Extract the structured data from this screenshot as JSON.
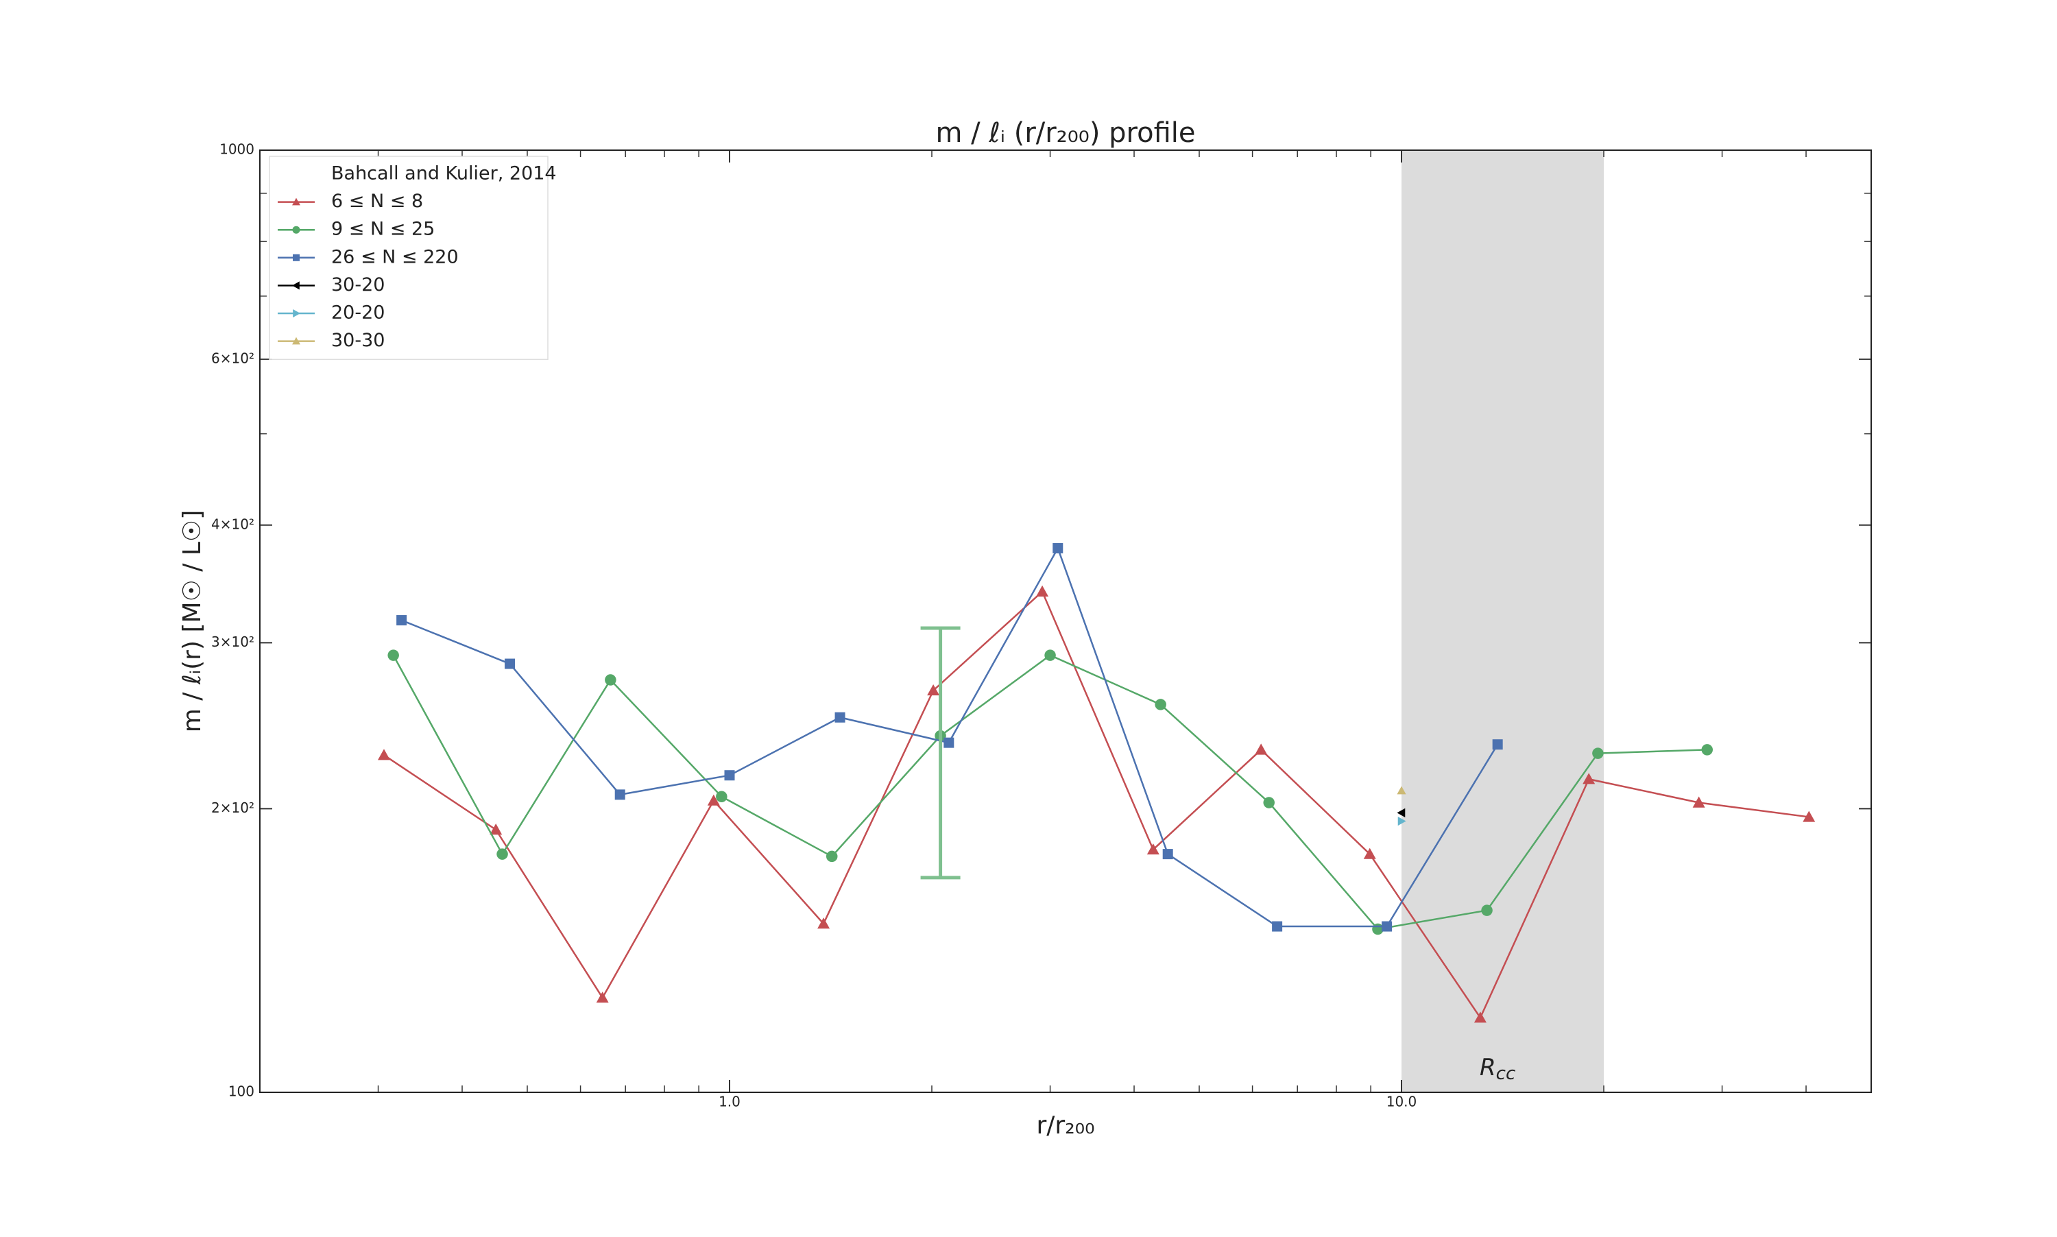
{
  "chart_data": {
    "type": "line",
    "title": "m /  ℓᵢ (r/r₂₀₀) profile",
    "x_label": "r/r₂₀₀",
    "y_label": "m / ℓᵢ(r)  [M☉ / L☉]",
    "x_scale": "log",
    "y_scale": "log",
    "xlim": [
      0.2,
      50
    ],
    "ylim": [
      100,
      1000
    ],
    "xticks": [
      {
        "value": 1,
        "label": "1.0"
      },
      {
        "value": 10,
        "label": "10.0"
      }
    ],
    "xminorticks": [
      0.3,
      0.4,
      0.5,
      0.6,
      0.7,
      0.8,
      0.9,
      2,
      3,
      4,
      5,
      6,
      7,
      8,
      9,
      20,
      30,
      40
    ],
    "yticks": [
      100,
      {
        "value": 200,
        "label": "2×10²"
      },
      {
        "value": 300,
        "label": "3×10²"
      },
      {
        "value": 400,
        "label": "4×10²"
      },
      {
        "value": 600,
        "label": "6×10²"
      },
      1000
    ],
    "yminorticks": [
      500,
      700,
      800,
      900
    ],
    "legend_title": "Bahcall and Kulier, 2014",
    "legend_position": "upper left",
    "span": {
      "xlim": [
        10,
        20
      ],
      "color": "#dcdcdc"
    },
    "annotation": {
      "text": "R",
      "subscript": "cc",
      "x": 13.9,
      "y": 106
    },
    "series": [
      {
        "name": "6 ≤ N ≤ 8",
        "color": "#c44e52",
        "marker": "triangle-up",
        "x": [
          0.306,
          0.449,
          0.647,
          0.947,
          1.38,
          2.01,
          2.92,
          4.27,
          6.18,
          8.97,
          13.1,
          19.0,
          27.7,
          40.4
        ],
        "values": [
          228,
          190,
          126,
          204,
          151,
          267,
          340,
          181,
          231,
          179,
          120,
          215,
          203,
          196
        ]
      },
      {
        "name": "9 ≤ N ≤ 25",
        "color": "#55a868",
        "marker": "circle",
        "x": [
          0.316,
          0.459,
          0.665,
          0.973,
          1.42,
          2.06,
          3.0,
          4.38,
          6.35,
          9.22,
          13.4,
          19.6,
          28.5
        ],
        "values": [
          291,
          179,
          274,
          206,
          178,
          239,
          291,
          258,
          203,
          149,
          156,
          229,
          231
        ]
      },
      {
        "name": "26 ≤ N ≤ 220",
        "color": "#4c72b0",
        "marker": "square",
        "x": [
          0.325,
          0.471,
          0.687,
          1.0,
          1.46,
          2.12,
          3.08,
          4.49,
          6.53,
          9.51,
          13.9
        ],
        "values": [
          317,
          285,
          207,
          217,
          250,
          235,
          378,
          179,
          150,
          150,
          234
        ]
      },
      {
        "name": "30-20",
        "color": "#000000",
        "marker": "triangle-left",
        "x": [
          10
        ],
        "values": [
          198
        ]
      },
      {
        "name": "20-20",
        "color": "#64b5cd",
        "marker": "triangle-right",
        "x": [
          10
        ],
        "values": [
          194
        ]
      },
      {
        "name": "30-30",
        "color": "#ccb974",
        "marker": "triangle-up",
        "x": [
          10
        ],
        "values": [
          209
        ]
      }
    ],
    "error_bar": {
      "x": 2.06,
      "low": 169,
      "high": 311,
      "color": "#7fc08f"
    }
  }
}
